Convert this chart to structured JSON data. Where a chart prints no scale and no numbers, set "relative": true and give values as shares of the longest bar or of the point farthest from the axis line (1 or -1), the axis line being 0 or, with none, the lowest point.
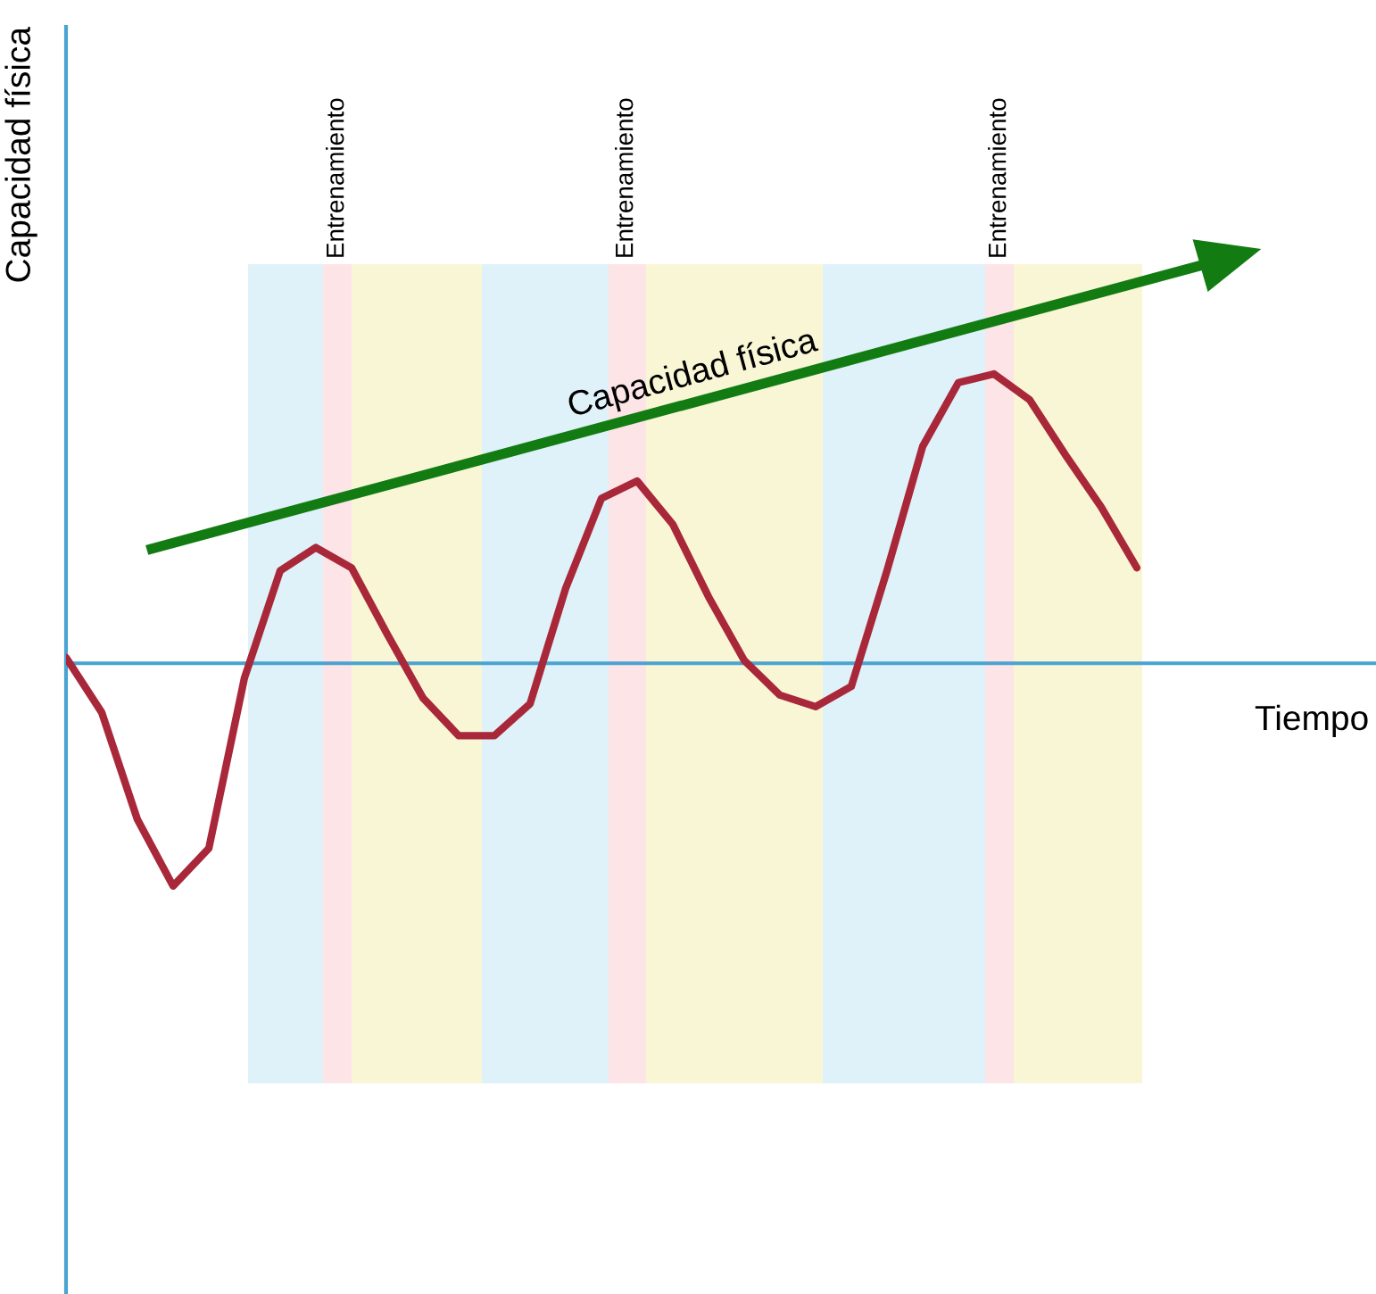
{
  "chart_data": {
    "type": "line",
    "relative": true,
    "xlabel": "Tiempo",
    "ylabel": "Capacidad física",
    "categories": [
      null,
      null,
      null,
      null,
      null,
      null,
      null,
      null,
      null,
      null,
      null,
      null,
      null,
      null,
      null,
      null,
      null,
      null,
      null,
      null,
      null,
      null,
      null,
      null,
      null,
      null,
      null,
      null,
      null,
      null,
      null
    ],
    "series": [
      {
        "color": "#a8283a",
        "values": [
          0.02,
          -0.17,
          -0.54,
          -0.77,
          -0.64,
          -0.05,
          0.32,
          0.4,
          0.33,
          0.1,
          -0.12,
          -0.25,
          -0.25,
          -0.14,
          0.26,
          0.57,
          0.63,
          0.48,
          0.23,
          0.01,
          -0.11,
          -0.15,
          -0.08,
          0.32,
          0.75,
          0.97,
          1,
          0.91,
          0.72,
          0.54,
          0.33
        ]
      }
    ],
    "ref_lines": [
      {
        "axis": "y",
        "value": 0,
        "color": "#4aa3d0"
      }
    ],
    "annotations": [
      "Capacidad física",
      "Entrenamiento",
      "Entrenamiento",
      "Entrenamiento"
    ],
    "grid": false,
    "legend": false
  }
}
